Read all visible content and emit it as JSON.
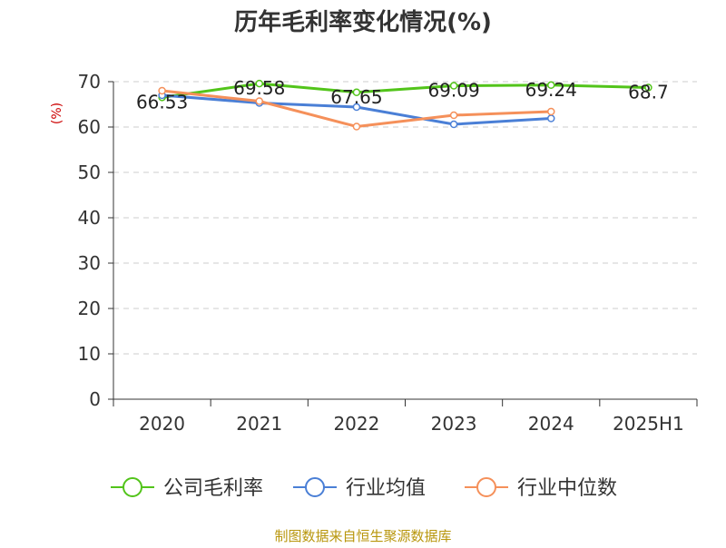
{
  "chart_data": {
    "type": "line",
    "title": "历年毛利率变化情况(%)",
    "ylabel": "(%)",
    "xlabel": "",
    "ylim": [
      0,
      70
    ],
    "y_ticks": [
      0,
      10,
      20,
      30,
      40,
      50,
      60,
      70
    ],
    "categories": [
      "2020",
      "2021",
      "2022",
      "2023",
      "2024",
      "2025H1"
    ],
    "grid": true,
    "legend_position": "bottom",
    "series": [
      {
        "name": "公司毛利率",
        "color": "#52c41a",
        "values": [
          66.53,
          69.58,
          67.65,
          69.09,
          69.24,
          68.7
        ],
        "labels": [
          "66.53",
          "69.58",
          "67.65",
          "69.09",
          "69.24",
          "68.7"
        ]
      },
      {
        "name": "行业均值",
        "color": "#4a7fd6",
        "values": [
          67.0,
          65.3,
          64.4,
          60.6,
          61.9,
          null
        ]
      },
      {
        "name": "行业中位数",
        "color": "#f5905a",
        "values": [
          68.0,
          65.7,
          60.1,
          62.6,
          63.4,
          null
        ]
      }
    ]
  },
  "footer": {
    "source": "制图数据来自恒生聚源数据库"
  }
}
